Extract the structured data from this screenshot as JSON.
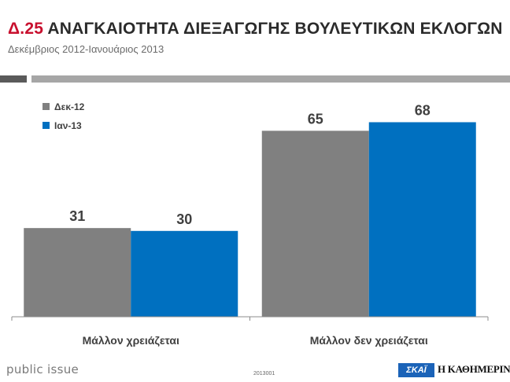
{
  "header": {
    "code": "Δ.25",
    "title": "ΑΝΑΓΚΑΙΟΤΗΤΑ ΔΙΕΞΑΓΩΓΗΣ ΒΟΥΛΕΥΤΙΚΩΝ ΕΚΛΟΓΩΝ",
    "subtitle": "Δεκέμβριος 2012-Ιανουάριος 2013"
  },
  "footer": {
    "brand": "public issue",
    "code": "2013001",
    "logo_left": "ΣΚΑΪ",
    "logo_right": "Η ΚΑΘΗΜΕΡΙΝΗ"
  },
  "colors": {
    "series1": "#808080",
    "series2": "#0070c0",
    "title_code": "#c8102e"
  },
  "chart_data": {
    "type": "bar",
    "title": "Δ.25 ΑΝΑΓΚΑΙΟΤΗΤΑ ΔΙΕΞΑΓΩΓΗΣ ΒΟΥΛΕΥΤΙΚΩΝ ΕΚΛΟΓΩΝ",
    "subtitle": "Δεκέμβριος 2012-Ιανουάριος 2013",
    "categories": [
      "Μάλλον χρειάζεται",
      "Μάλλον δεν χρειάζεται"
    ],
    "series": [
      {
        "name": "Δεκ-12",
        "values": [
          31,
          65
        ],
        "color": "#808080"
      },
      {
        "name": "Ιαν-13",
        "values": [
          30,
          68
        ],
        "color": "#0070c0"
      }
    ],
    "ylim": [
      0,
      100
    ],
    "grid": false,
    "legend": "top-left",
    "data_labels": true
  }
}
